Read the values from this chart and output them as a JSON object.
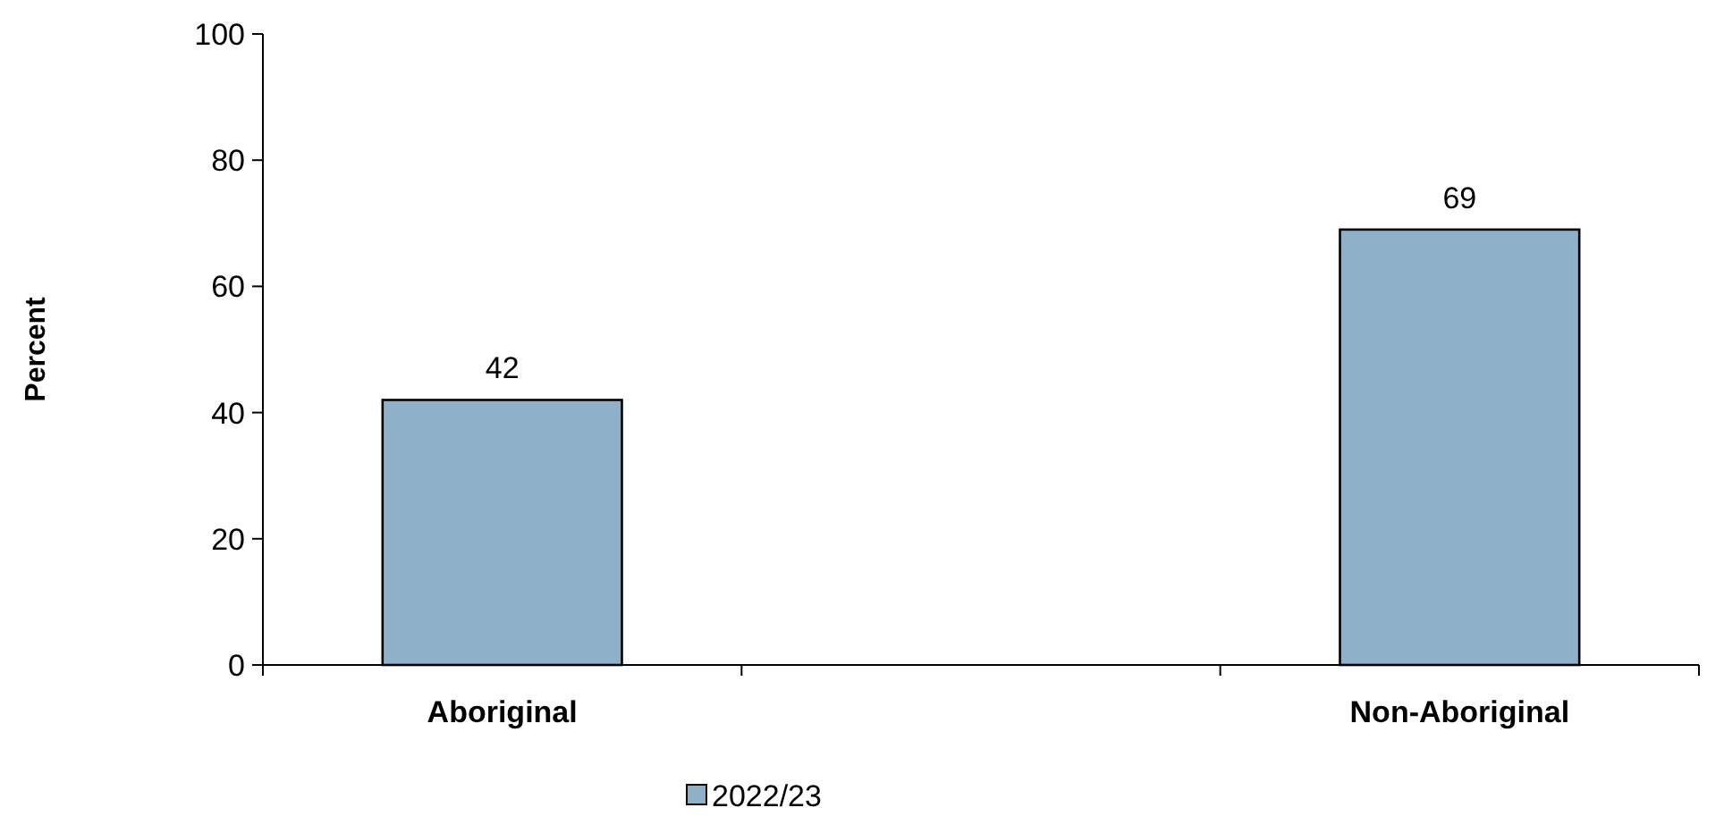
{
  "chart_data": {
    "type": "bar",
    "ylabel": "Percent",
    "categories": [
      "Aboriginal",
      null,
      "Non-Aboriginal"
    ],
    "series": [
      {
        "name": "2022/23",
        "color": "#8eb0c8",
        "values": [
          42,
          null,
          69
        ]
      }
    ],
    "ylim": [
      0,
      100
    ],
    "yticks": [
      0,
      20,
      40,
      60,
      80,
      100
    ],
    "grid": false,
    "legend": "bottom",
    "data_labels": true
  }
}
